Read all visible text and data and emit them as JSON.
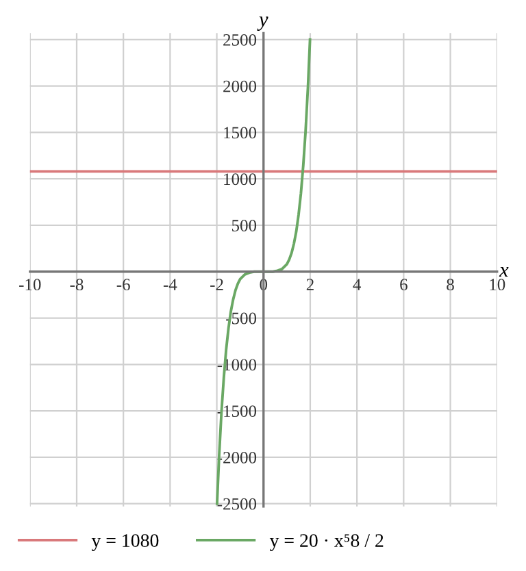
{
  "chart_data": {
    "type": "line",
    "xlabel": "x",
    "ylabel": "y",
    "xlim": [
      -10,
      10
    ],
    "ylim": [
      -2530,
      2570
    ],
    "xticks": [
      -10,
      -8,
      -6,
      -4,
      -2,
      0,
      2,
      4,
      6,
      8,
      10
    ],
    "yticks": [
      -2500,
      -2000,
      -1500,
      -1000,
      -500,
      500,
      1000,
      1500,
      2000,
      2500
    ],
    "grid": true,
    "legend": "bottom",
    "marker": "none",
    "line_style": "solid",
    "series": [
      {
        "name": "y = 1080",
        "color": "#d9797b",
        "x": [
          -10,
          10
        ],
        "values": [
          1080,
          1080
        ]
      },
      {
        "name": "y = 20 · x⁵8 / 2",
        "color": "#6aa864",
        "x": [
          -1.99,
          -1.9,
          -1.8,
          -1.7,
          -1.6,
          -1.5,
          -1.4,
          -1.3,
          -1.2,
          -1.1,
          -1.0,
          -0.8,
          -0.6,
          -0.4,
          0,
          0.4,
          0.6,
          0.8,
          1.0,
          1.1,
          1.2,
          1.3,
          1.4,
          1.5,
          1.6,
          1.7,
          1.8,
          1.9,
          1.99
        ],
        "values": [
          -2500,
          -1980,
          -1510,
          -1140,
          -840,
          -610,
          -430,
          -300,
          -200,
          -130,
          -80,
          -30,
          -10,
          0,
          0,
          0,
          10,
          30,
          80,
          130,
          200,
          300,
          430,
          610,
          840,
          1140,
          1510,
          1980,
          2500
        ]
      }
    ]
  }
}
